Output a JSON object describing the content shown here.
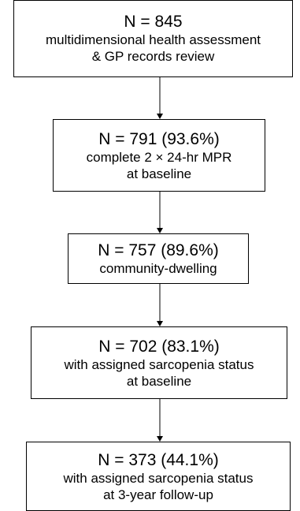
{
  "boxes": [
    {
      "n": "N = 845",
      "desc": "multidimensional health assessment\n& GP records review"
    },
    {
      "n": "N = 791 (93.6%)",
      "desc": "complete 2 × 24-hr MPR\nat baseline"
    },
    {
      "n": "N = 757 (89.6%)",
      "desc": "community-dwelling"
    },
    {
      "n": "N = 702 (83.1%)",
      "desc": "with assigned sarcopenia status\nat baseline"
    },
    {
      "n": "N = 373 (44.1%)",
      "desc": "with assigned sarcopenia status\nat 3-year follow-up"
    }
  ]
}
